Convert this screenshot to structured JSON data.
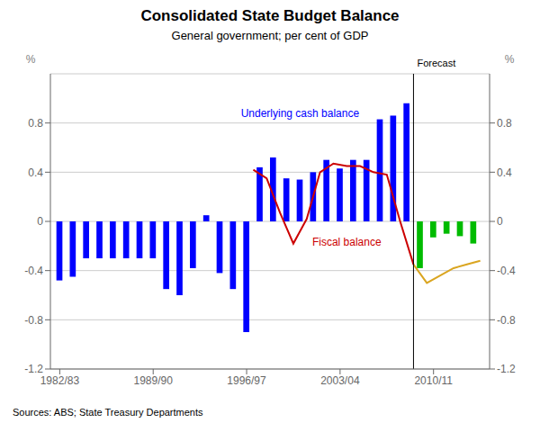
{
  "chart_data": {
    "type": "bar",
    "title": "Consolidated State Budget Balance",
    "subtitle": "General government; per cent of GDP",
    "source": "Sources: ABS; State Treasury Departments",
    "xlim": [
      1981.3,
      2014.2
    ],
    "xticks": [
      {
        "value": 1982,
        "label": "1982/83"
      },
      {
        "value": 1989,
        "label": "1989/90"
      },
      {
        "value": 1996,
        "label": "1996/97"
      },
      {
        "value": 2003,
        "label": "2003/04"
      },
      {
        "value": 2010,
        "label": "2010/11"
      }
    ],
    "ylim": [
      -1.2,
      1.2
    ],
    "yticks": [
      -1.2,
      -0.8,
      -0.4,
      0,
      0.4,
      0.8
    ],
    "y2lim": [
      -1.2,
      1.2
    ],
    "y2ticks": [
      -1.2,
      -0.8,
      -0.4,
      0,
      0.4,
      0.8
    ],
    "ylabel": "%",
    "y2label": "%",
    "grid": true,
    "series": [
      {
        "type": "bar",
        "color": "#0000FF",
        "x": [
          1982,
          1983,
          1984,
          1985,
          1986,
          1987,
          1988,
          1989,
          1990,
          1991,
          1992,
          1993,
          1994,
          1995,
          1996,
          1997,
          1998,
          1999,
          2000,
          2001,
          2002,
          2003,
          2004,
          2005,
          2006,
          2007,
          2008
        ],
        "values": [
          -0.48,
          -0.45,
          -0.3,
          -0.3,
          -0.3,
          -0.3,
          -0.3,
          -0.3,
          -0.55,
          -0.6,
          -0.38,
          0.05,
          -0.42,
          -0.55,
          -0.9,
          0.44,
          0.52,
          0.35,
          0.34,
          0.4,
          0.5,
          0.43,
          0.5,
          0.5,
          0.83,
          0.86,
          0.96
        ]
      },
      {
        "type": "bar",
        "color": "#00BB00",
        "x": [
          2009,
          2010,
          2011,
          2012,
          2013
        ],
        "values": [
          -0.38,
          -0.13,
          -0.1,
          -0.12,
          -0.18
        ]
      },
      {
        "type": "line",
        "color": "#CC0000",
        "x": [
          1996.5,
          1997.5,
          1998.5,
          1999.5,
          2000.5,
          2001.5,
          2002.5,
          2003.5,
          2004.5,
          2005.5,
          2006.5,
          2007.5,
          2008.5
        ],
        "values": [
          0.42,
          0.35,
          0.07,
          -0.18,
          0.02,
          0.4,
          0.47,
          0.45,
          0.45,
          0.4,
          0.38,
          0.0,
          -0.35
        ]
      },
      {
        "type": "line",
        "color": "#DAA520",
        "x": [
          2008.5,
          2009.5,
          2010.5,
          2011.5,
          2012.5,
          2013.5
        ],
        "values": [
          -0.35,
          -0.5,
          -0.44,
          -0.38,
          -0.35,
          -0.32
        ]
      }
    ],
    "vlines": [
      {
        "x": 2008.5,
        "label": "Forecast"
      }
    ],
    "annotations": [
      {
        "text": "Underlying cash balance",
        "x": 2000.0,
        "y": 0.83,
        "color": "#0000FF"
      },
      {
        "text": "Fiscal balance",
        "x": 2003.5,
        "y": -0.22,
        "color": "#CC0000"
      }
    ]
  }
}
